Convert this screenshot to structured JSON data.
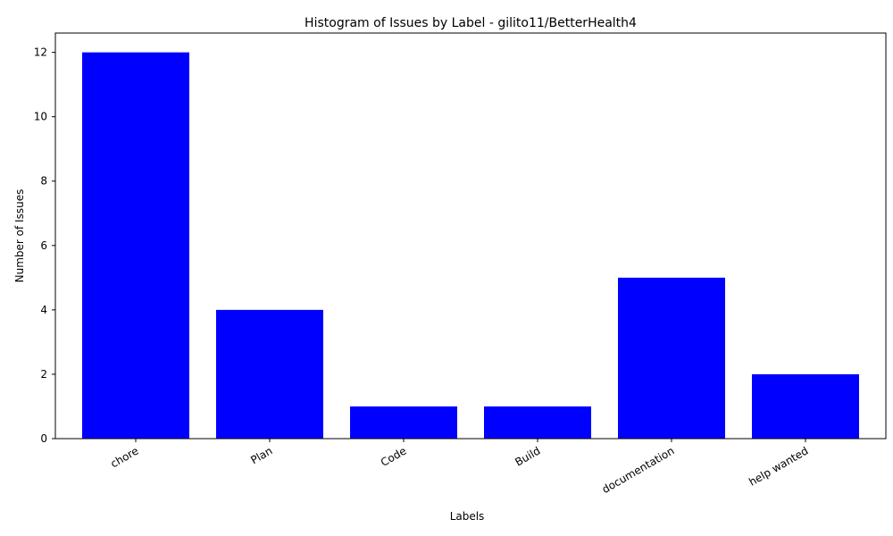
{
  "chart_data": {
    "type": "bar",
    "title": "Histogram of Issues by Label - gilito11/BetterHealth4",
    "xlabel": "Labels",
    "ylabel": "Number of Issues",
    "categories": [
      "chore",
      "Plan",
      "Code",
      "Build",
      "documentation",
      "help wanted"
    ],
    "values": [
      12,
      4,
      1,
      1,
      5,
      2
    ],
    "ylim": [
      0,
      12.6
    ],
    "yticks": [
      0,
      2,
      4,
      6,
      8,
      10,
      12
    ],
    "bar_color": "#0000ff",
    "grid": false,
    "legend": false
  }
}
